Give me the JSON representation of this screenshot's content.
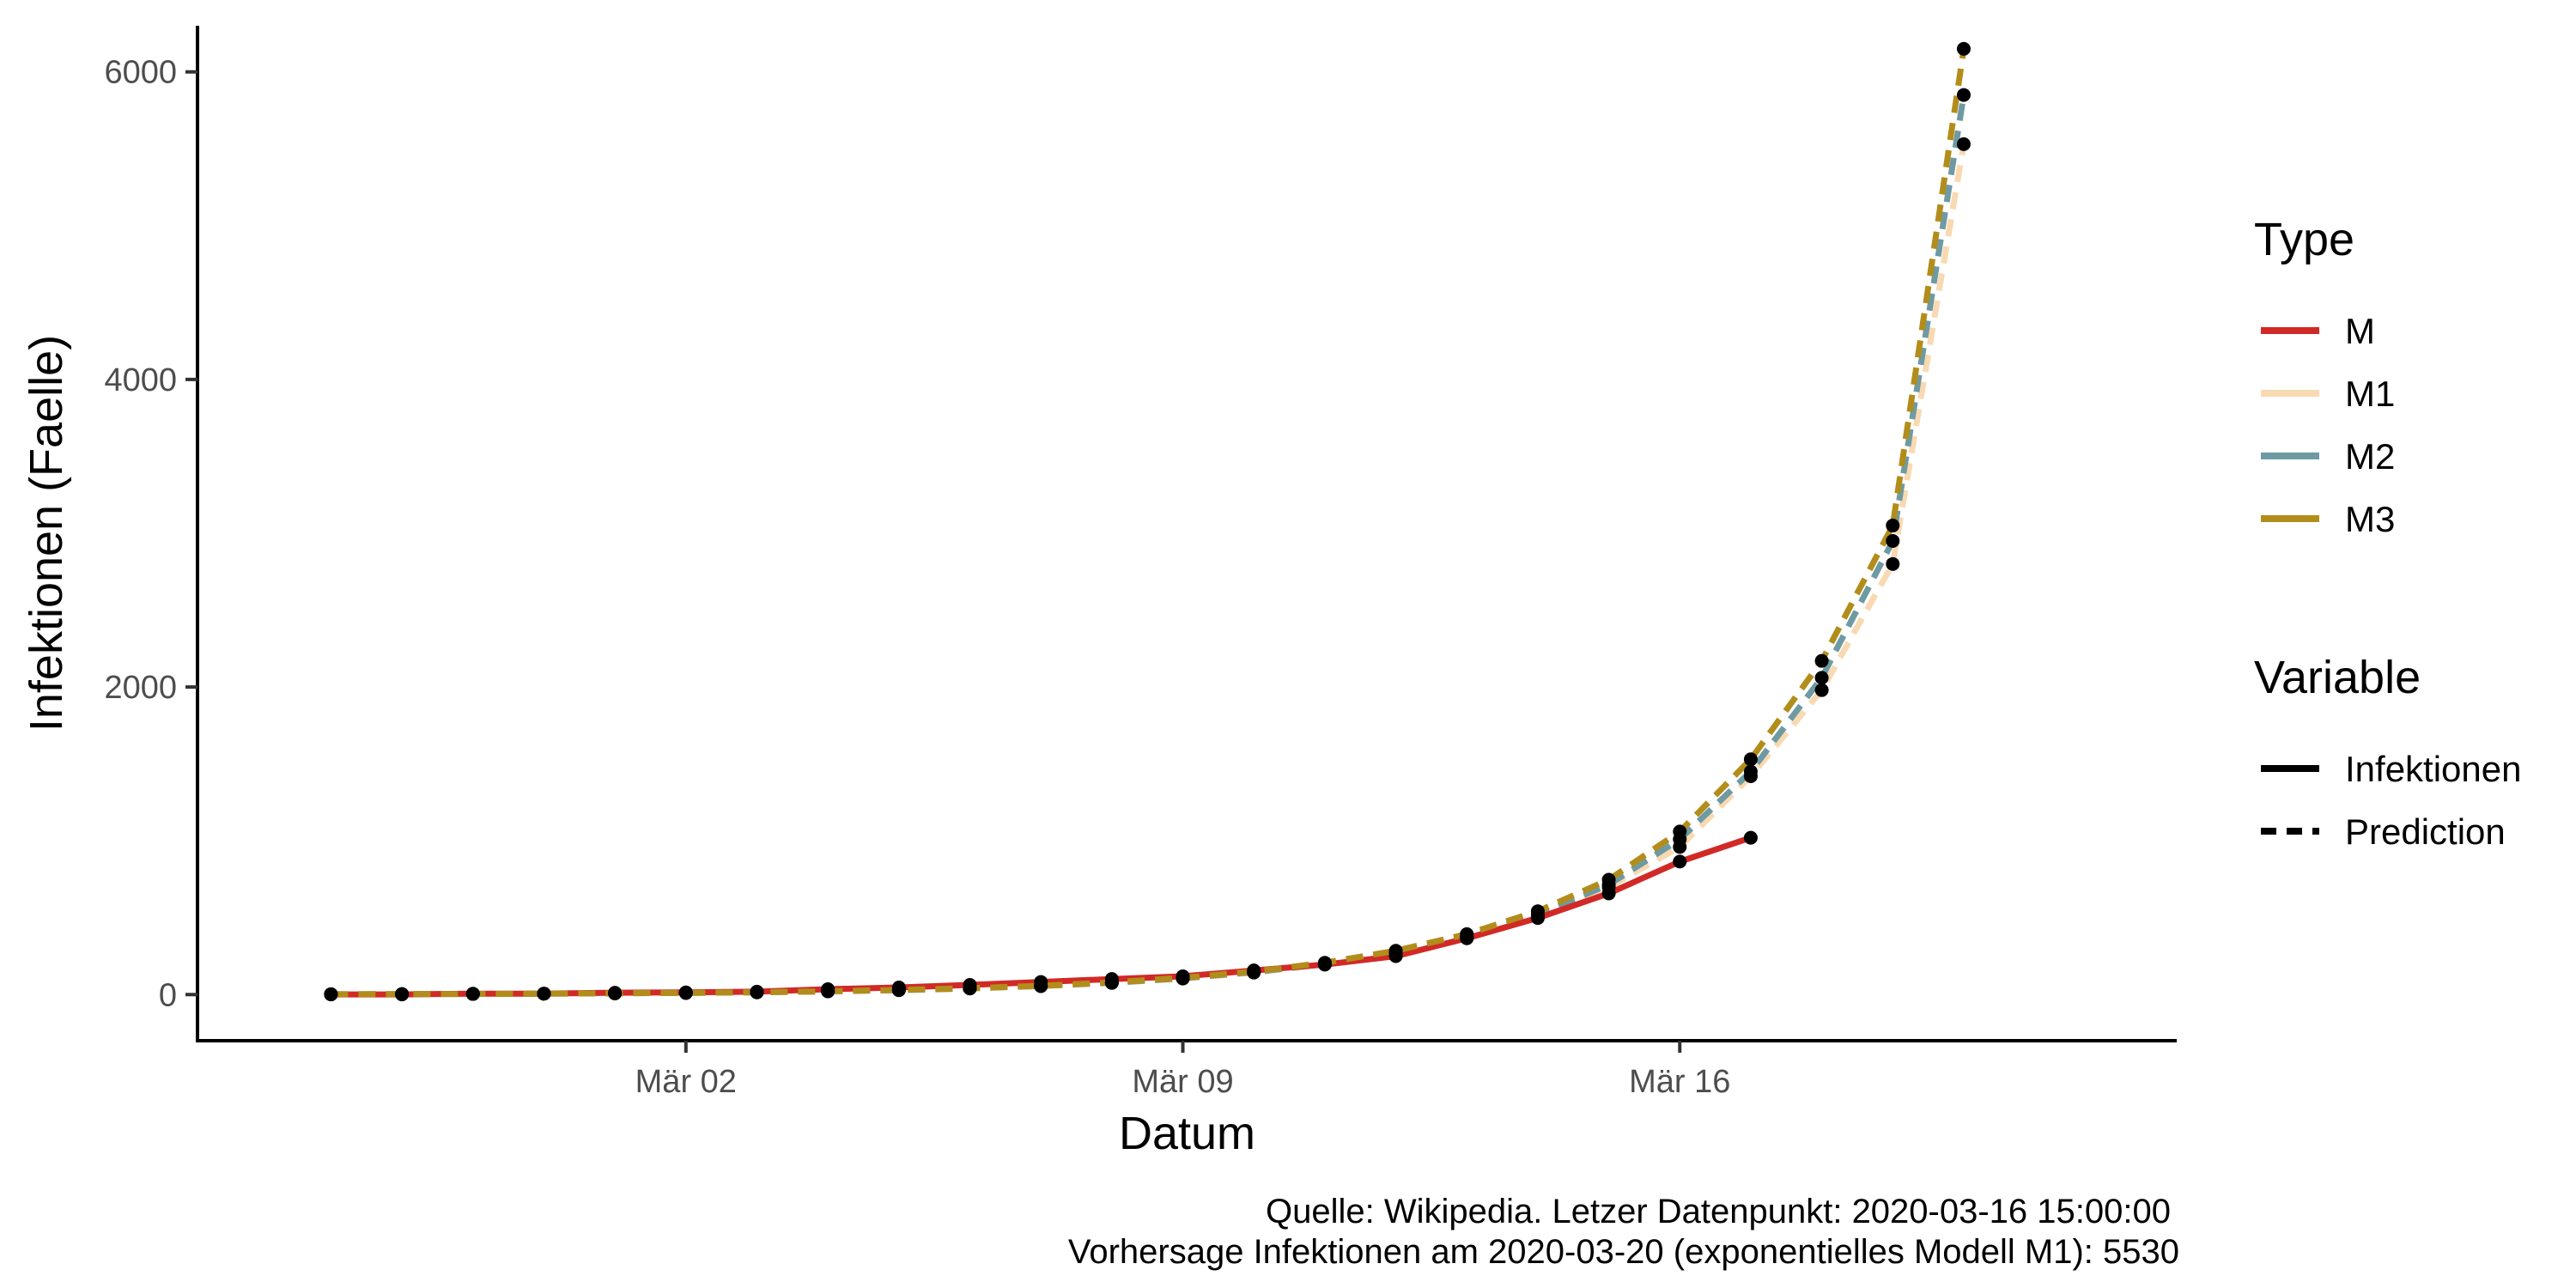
{
  "chart_data": {
    "type": "line",
    "title": "",
    "xlabel": "Datum",
    "ylabel": "Infektionen (Faelle)",
    "x_range": [
      "2020-02-25",
      "2020-03-22"
    ],
    "ylim": [
      -300,
      6300
    ],
    "x_ticks": [
      {
        "date": "2020-03-02",
        "label": "Mär 02"
      },
      {
        "date": "2020-03-09",
        "label": "Mär 09"
      },
      {
        "date": "2020-03-16",
        "label": "Mär 16"
      }
    ],
    "y_ticks": [
      0,
      2000,
      4000,
      6000
    ],
    "grid": false,
    "legend_placement": "right",
    "legends": [
      {
        "title": "Type",
        "items": [
          {
            "label": "M",
            "color": "#d12a26",
            "dash": "solid"
          },
          {
            "label": "M1",
            "color": "#f8d9b1",
            "dash": "solid"
          },
          {
            "label": "M2",
            "color": "#6e9aa3",
            "dash": "solid"
          },
          {
            "label": "M3",
            "color": "#b38d1b",
            "dash": "solid"
          }
        ]
      },
      {
        "title": "Variable",
        "items": [
          {
            "label": "Infektionen",
            "color": "#000000",
            "dash": "solid"
          },
          {
            "label": "Prediction",
            "color": "#000000",
            "dash": "dashed"
          }
        ]
      }
    ],
    "series": [
      {
        "name": "M",
        "variable": "Infektionen",
        "color": "#d12a26",
        "dash": "solid",
        "x": [
          "2020-02-26",
          "2020-02-27",
          "2020-02-28",
          "2020-02-29",
          "2020-03-01",
          "2020-03-02",
          "2020-03-03",
          "2020-03-04",
          "2020-03-05",
          "2020-03-06",
          "2020-03-07",
          "2020-03-08",
          "2020-03-09",
          "2020-03-10",
          "2020-03-11",
          "2020-03-12",
          "2020-03-13",
          "2020-03-14",
          "2020-03-15",
          "2020-03-16",
          "2020-03-17"
        ],
        "y": [
          1,
          1,
          6,
          6,
          12,
          14,
          19,
          35,
          46,
          63,
          82,
          101,
          119,
          157,
          195,
          250,
          366,
          498,
          658,
          865,
          1020
        ]
      },
      {
        "name": "M1",
        "variable": "Prediction",
        "color": "#f8d9b1",
        "dash": "dashed",
        "x": [
          "2020-02-26",
          "2020-02-27",
          "2020-02-28",
          "2020-02-29",
          "2020-03-01",
          "2020-03-02",
          "2020-03-03",
          "2020-03-04",
          "2020-03-05",
          "2020-03-06",
          "2020-03-07",
          "2020-03-08",
          "2020-03-09",
          "2020-03-10",
          "2020-03-11",
          "2020-03-12",
          "2020-03-13",
          "2020-03-14",
          "2020-03-15",
          "2020-03-16",
          "2020-03-17",
          "2020-03-18",
          "2020-03-19",
          "2020-03-20"
        ],
        "y": [
          2,
          3,
          4,
          6,
          8,
          11,
          15,
          21,
          29,
          40,
          55,
          76,
          104,
          143,
          196,
          270,
          370,
          508,
          698,
          960,
          1420,
          1980,
          2800,
          5530
        ]
      },
      {
        "name": "M2",
        "variable": "Prediction",
        "color": "#6e9aa3",
        "dash": "dashed",
        "x": [
          "2020-02-26",
          "2020-02-27",
          "2020-02-28",
          "2020-02-29",
          "2020-03-01",
          "2020-03-02",
          "2020-03-03",
          "2020-03-04",
          "2020-03-05",
          "2020-03-06",
          "2020-03-07",
          "2020-03-08",
          "2020-03-09",
          "2020-03-10",
          "2020-03-11",
          "2020-03-12",
          "2020-03-13",
          "2020-03-14",
          "2020-03-15",
          "2020-03-16",
          "2020-03-17",
          "2020-03-18",
          "2020-03-19",
          "2020-03-20"
        ],
        "y": [
          2,
          3,
          4,
          6,
          8,
          11,
          15,
          21,
          29,
          40,
          56,
          77,
          106,
          146,
          200,
          275,
          378,
          520,
          715,
          1010,
          1450,
          2060,
          2950,
          5850
        ]
      },
      {
        "name": "M3",
        "variable": "Prediction",
        "color": "#b38d1b",
        "dash": "dashed",
        "x": [
          "2020-02-26",
          "2020-02-27",
          "2020-02-28",
          "2020-02-29",
          "2020-03-01",
          "2020-03-02",
          "2020-03-03",
          "2020-03-04",
          "2020-03-05",
          "2020-03-06",
          "2020-03-07",
          "2020-03-08",
          "2020-03-09",
          "2020-03-10",
          "2020-03-11",
          "2020-03-12",
          "2020-03-13",
          "2020-03-14",
          "2020-03-15",
          "2020-03-16",
          "2020-03-17",
          "2020-03-18",
          "2020-03-19",
          "2020-03-20"
        ],
        "y": [
          2,
          3,
          4,
          6,
          8,
          11,
          15,
          21,
          30,
          41,
          57,
          79,
          109,
          150,
          207,
          285,
          393,
          542,
          747,
          1060,
          1530,
          2170,
          3050,
          6150
        ]
      }
    ]
  },
  "caption": {
    "line1": "Quelle: Wikipedia. Letzer Datenpunkt: 2020-03-16 15:00:00",
    "line2": "Vorhersage Infektionen am  2020-03-20  (exponentielles Modell M1):  5530"
  }
}
